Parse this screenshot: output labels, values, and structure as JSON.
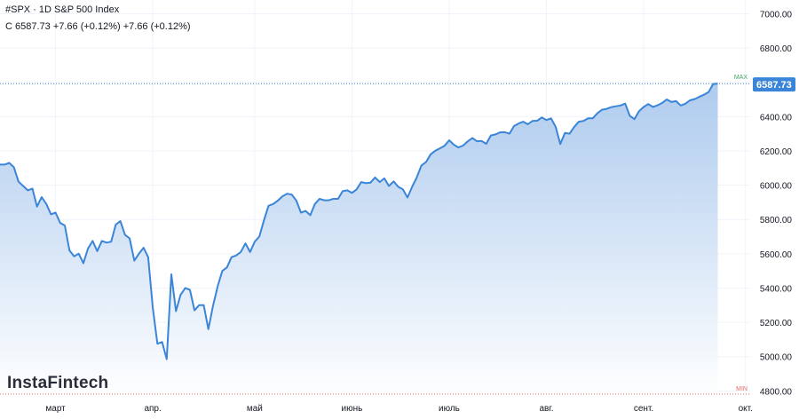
{
  "header": {
    "symbol_line": "#SPX · 1D S&P 500 Index",
    "ohlc_line": "C 6587.73 +7.66 (+0.12%) +7.66 (+0.12%)"
  },
  "brand": {
    "name": "InstaFintech"
  },
  "colors": {
    "line": "#3a85d8",
    "fill_top": "#aecbee",
    "fill_bottom": "#ffffff",
    "price_badge": "#3a85d8",
    "max_label": "#3fa66b",
    "min_label": "#e06a6a",
    "grid": "#f0f3fa",
    "axis_text": "#131722"
  },
  "chart_data": {
    "type": "area",
    "title": "",
    "xlabel": "",
    "ylabel": "",
    "ylim": [
      4750,
      7080
    ],
    "yticks": [
      "4800.00",
      "5000.00",
      "5200.00",
      "5400.00",
      "5600.00",
      "5800.00",
      "6000.00",
      "6200.00",
      "6400.00",
      "6600.00",
      "6800.00",
      "7000.00"
    ],
    "xticks": [
      {
        "label": "март",
        "index": 12
      },
      {
        "label": "апр.",
        "index": 33
      },
      {
        "label": "май",
        "index": 55
      },
      {
        "label": "июнь",
        "index": 76
      },
      {
        "label": "июль",
        "index": 97
      },
      {
        "label": "авг.",
        "index": 118
      },
      {
        "label": "сент.",
        "index": 139
      },
      {
        "label": "окт.",
        "index": 161
      }
    ],
    "x_range": [
      0,
      162
    ],
    "last_price": "6587.73",
    "max_label": "MAX",
    "min_label": "MIN",
    "max_value": 6592,
    "min_value": 4782,
    "grid": true,
    "values": [
      6120,
      6120,
      6130,
      6105,
      6020,
      5995,
      5970,
      5980,
      5875,
      5930,
      5890,
      5830,
      5840,
      5780,
      5765,
      5620,
      5585,
      5600,
      5545,
      5630,
      5675,
      5615,
      5675,
      5665,
      5670,
      5770,
      5790,
      5710,
      5690,
      5560,
      5600,
      5635,
      5580,
      5285,
      5075,
      5085,
      4985,
      5480,
      5265,
      5360,
      5400,
      5390,
      5270,
      5300,
      5300,
      5160,
      5295,
      5410,
      5500,
      5520,
      5580,
      5590,
      5610,
      5660,
      5610,
      5670,
      5700,
      5795,
      5880,
      5890,
      5910,
      5935,
      5950,
      5945,
      5910,
      5840,
      5850,
      5825,
      5890,
      5920,
      5912,
      5912,
      5920,
      5920,
      5965,
      5970,
      5955,
      5975,
      6018,
      6012,
      6015,
      6045,
      6018,
      6040,
      5995,
      6022,
      5990,
      5976,
      5928,
      5990,
      6045,
      6115,
      6135,
      6180,
      6201,
      6215,
      6230,
      6262,
      6236,
      6220,
      6231,
      6255,
      6275,
      6256,
      6258,
      6241,
      6290,
      6296,
      6308,
      6309,
      6300,
      6345,
      6360,
      6370,
      6355,
      6375,
      6376,
      6395,
      6380,
      6390,
      6340,
      6240,
      6305,
      6300,
      6340,
      6370,
      6375,
      6390,
      6390,
      6420,
      6440,
      6445,
      6455,
      6460,
      6465,
      6476,
      6405,
      6385,
      6432,
      6456,
      6473,
      6456,
      6466,
      6480,
      6500,
      6485,
      6490,
      6465,
      6475,
      6495,
      6502,
      6515,
      6527,
      6543,
      6590,
      6592
    ],
    "last_value": 6587.73
  }
}
